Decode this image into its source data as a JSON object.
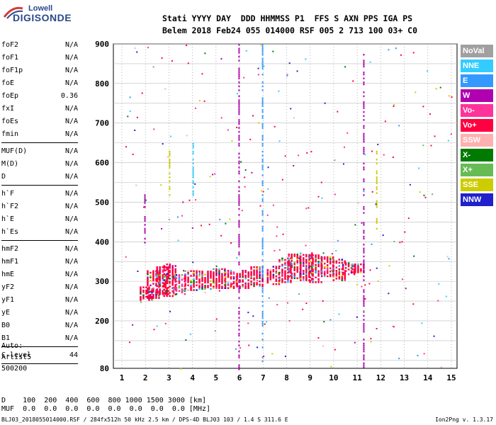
{
  "logo": {
    "line1": "Lowell",
    "line2": "DIGISONDE"
  },
  "header": {
    "line1": "Stati YYYY DAY  DDD HHMMSS P1  FFS S AXN PPS IGA PS",
    "line2": "Belem 2018 Feb24 055 014000 RSF 005 2 713 100 03+ C0"
  },
  "params": {
    "group1": [
      {
        "name": "foF2",
        "value": "N/A"
      },
      {
        "name": "foF1",
        "value": "N/A"
      },
      {
        "name": "foF1p",
        "value": "N/A"
      },
      {
        "name": "foE",
        "value": "N/A"
      },
      {
        "name": "foEp",
        "value": "0.36"
      },
      {
        "name": "fxI",
        "value": "N/A"
      },
      {
        "name": "foEs",
        "value": "N/A"
      },
      {
        "name": "fmin",
        "value": "N/A"
      }
    ],
    "group2": [
      {
        "name": "MUF(D)",
        "value": "N/A"
      },
      {
        "name": "M(D)",
        "value": "N/A"
      },
      {
        "name": "D",
        "value": "N/A"
      }
    ],
    "group3": [
      {
        "name": "h`F",
        "value": "N/A"
      },
      {
        "name": "h`F2",
        "value": "N/A"
      },
      {
        "name": "h`E",
        "value": "N/A"
      },
      {
        "name": "h`Es",
        "value": "N/A"
      }
    ],
    "group4": [
      {
        "name": "hmF2",
        "value": "N/A"
      },
      {
        "name": "hmF1",
        "value": "N/A"
      },
      {
        "name": "hmE",
        "value": "N/A"
      },
      {
        "name": "yF2",
        "value": "N/A"
      },
      {
        "name": "yF1",
        "value": "N/A"
      },
      {
        "name": "yE",
        "value": "N/A"
      },
      {
        "name": "B0",
        "value": "N/A"
      },
      {
        "name": "B1",
        "value": "N/A"
      }
    ],
    "clevel": {
      "name": "C-level",
      "value": "44"
    }
  },
  "auto": {
    "line1": "Auto:",
    "line2": "Artist5",
    "line3": "500200"
  },
  "legend": [
    {
      "label": "NoVal",
      "color": "#a0a0a0"
    },
    {
      "label": "NNE",
      "color": "#33ccff"
    },
    {
      "label": "E",
      "color": "#3399ff"
    },
    {
      "label": "W",
      "color": "#b000b0"
    },
    {
      "label": "Vo-",
      "color": "#ff3399"
    },
    {
      "label": "Vo+",
      "color": "#ff0040"
    },
    {
      "label": "SSW",
      "color": "#ffb0b0"
    },
    {
      "label": "X-",
      "color": "#007a00"
    },
    {
      "label": "X+",
      "color": "#66bb55"
    },
    {
      "label": "SSE",
      "color": "#cccc00"
    },
    {
      "label": "NNW",
      "color": "#2020cc"
    }
  ],
  "bottom": {
    "line1": "D    100  200  400  600  800 1000 1500 3000 [km]",
    "line2": "MUF  0.0  0.0  0.0  0.0  0.0  0.0  0.0  0.0 [MHz]"
  },
  "footer": "BLJ03_2018055014000.RSF / 284fx512h 50 kHz 2.5 km / DPS-4D BLJ03 103 / 1.4 S 311.6 E",
  "version": "Ion2Png v. 1.3.17",
  "chart_data": {
    "type": "scatter",
    "xlabel": "",
    "ylabel": "",
    "xlim": [
      1,
      15
    ],
    "ylim": [
      80,
      900
    ],
    "x_ticks": [
      1,
      2,
      3,
      4,
      5,
      6,
      7,
      8,
      9,
      10,
      11,
      12,
      13,
      14,
      15
    ],
    "y_ticks": [
      80,
      200,
      300,
      400,
      500,
      600,
      700,
      800,
      900
    ],
    "grid": true,
    "legend_position": "right",
    "traces": [
      {
        "x": 2.0,
        "ymin": 255,
        "ymax": 290,
        "dir": "Vo+"
      },
      {
        "x": 2.3,
        "ymin": 260,
        "ymax": 330,
        "dir": "Vo+"
      },
      {
        "x": 2.7,
        "ymin": 270,
        "ymax": 340,
        "dir": "Vo+"
      },
      {
        "x": 3.0,
        "ymin": 265,
        "ymax": 345,
        "dir": "Vo+"
      },
      {
        "x": 3.4,
        "ymin": 270,
        "ymax": 320,
        "dir": "Vo-"
      },
      {
        "x": 3.9,
        "ymin": 280,
        "ymax": 330,
        "dir": "Vo+"
      },
      {
        "x": 4.5,
        "ymin": 283,
        "ymax": 330,
        "dir": "Vo+"
      },
      {
        "x": 5.1,
        "ymin": 285,
        "ymax": 335,
        "dir": "Vo+"
      },
      {
        "x": 5.6,
        "ymin": 285,
        "ymax": 330,
        "dir": "Vo+"
      },
      {
        "x": 6.1,
        "ymin": 285,
        "ymax": 330,
        "dir": "Vo+"
      },
      {
        "x": 6.7,
        "ymin": 290,
        "ymax": 340,
        "dir": "Vo+"
      },
      {
        "x": 7.4,
        "ymin": 295,
        "ymax": 340,
        "dir": "Vo+"
      },
      {
        "x": 7.9,
        "ymin": 300,
        "ymax": 360,
        "dir": "Vo+"
      },
      {
        "x": 8.3,
        "ymin": 310,
        "ymax": 370,
        "dir": "Vo+"
      },
      {
        "x": 8.8,
        "ymin": 305,
        "ymax": 375,
        "dir": "Vo+"
      },
      {
        "x": 9.2,
        "ymin": 300,
        "ymax": 370,
        "dir": "Vo+"
      },
      {
        "x": 9.7,
        "ymin": 315,
        "ymax": 365,
        "dir": "Vo+"
      },
      {
        "x": 10.2,
        "ymin": 305,
        "ymax": 360,
        "dir": "Vo+"
      },
      {
        "x": 10.6,
        "ymin": 320,
        "ymax": 350,
        "dir": "Vo+"
      },
      {
        "x": 11.0,
        "ymin": 325,
        "ymax": 345,
        "dir": "Vo+"
      }
    ],
    "vertical_streaks": [
      {
        "x": 5.95,
        "ymin": 80,
        "ymax": 900,
        "dir": "W"
      },
      {
        "x": 6.95,
        "ymin": 100,
        "ymax": 900,
        "dir": "E"
      },
      {
        "x": 11.25,
        "ymin": 80,
        "ymax": 880,
        "dir": "W"
      },
      {
        "x": 1.95,
        "ymin": 400,
        "ymax": 520,
        "dir": "W"
      },
      {
        "x": 11.8,
        "ymin": 420,
        "ymax": 640,
        "dir": "SSE"
      },
      {
        "x": 3.0,
        "ymin": 520,
        "ymax": 640,
        "dir": "SSE"
      },
      {
        "x": 4.0,
        "ymin": 520,
        "ymax": 650,
        "dir": "NNE"
      }
    ]
  }
}
